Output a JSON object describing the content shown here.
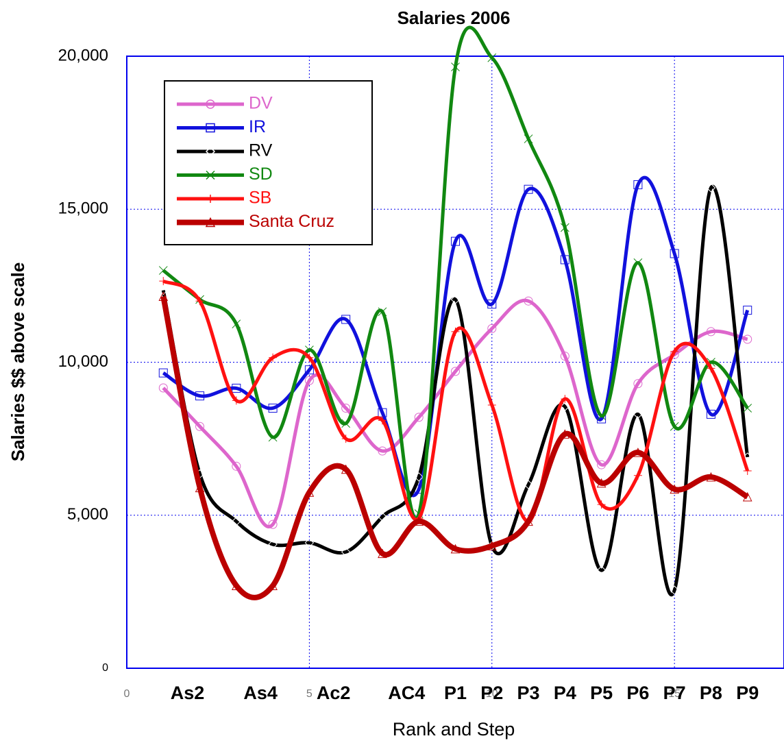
{
  "chart_data": {
    "type": "line",
    "title": "Salaries 2006",
    "x_label": "Rank and Step",
    "y_label": "Salaries  $$ above scale",
    "x": [
      1,
      2,
      3,
      4,
      5,
      6,
      7,
      8,
      9,
      10,
      11,
      12,
      13,
      14,
      15,
      16,
      17
    ],
    "x_category_labels": [
      {
        "value": 2,
        "label": "As2"
      },
      {
        "value": 4,
        "label": "As4"
      },
      {
        "value": 6,
        "label": "Ac2"
      },
      {
        "value": 8,
        "label": "AC4"
      },
      {
        "value": 9,
        "label": "P1"
      },
      {
        "value": 10,
        "label": "P2"
      },
      {
        "value": 11,
        "label": "P3"
      },
      {
        "value": 12,
        "label": "P4"
      },
      {
        "value": 13,
        "label": "P5"
      },
      {
        "value": 14,
        "label": "P6"
      },
      {
        "value": 15,
        "label": "P7"
      },
      {
        "value": 16,
        "label": "P8"
      },
      {
        "value": 17,
        "label": "P9"
      }
    ],
    "xlim": [
      0,
      18
    ],
    "xticks": [
      0,
      5,
      10,
      15
    ],
    "ylim": [
      0,
      20000
    ],
    "yticks": [
      0,
      {
        "value": 5000,
        "label": "5,000"
      },
      {
        "value": 10000,
        "label": "10,000"
      },
      {
        "value": 15000,
        "label": "15,000"
      },
      {
        "value": 20000,
        "label": "20,000"
      }
    ],
    "grid": true,
    "legend": "upper left",
    "series": [
      {
        "name": "DV",
        "color": "#dd66cc",
        "marker": "circle",
        "values": [
          9160,
          7900,
          6600,
          4700,
          9400,
          8500,
          7100,
          8200,
          9700,
          11100,
          12000,
          10200,
          6650,
          9300,
          10250,
          11000,
          10750
        ]
      },
      {
        "name": "IR",
        "color": "#1111dd",
        "marker": "square",
        "values": [
          9650,
          8900,
          9150,
          8500,
          9750,
          11400,
          8350,
          5850,
          13950,
          11900,
          15650,
          13350,
          8150,
          15800,
          13550,
          8300,
          11700
        ]
      },
      {
        "name": "RV",
        "color": "#000000",
        "marker": "diamond",
        "values": [
          12350,
          6350,
          4800,
          4050,
          4100,
          3800,
          4950,
          6250,
          12050,
          4000,
          6000,
          8550,
          3200,
          8300,
          2550,
          15700,
          6900
        ]
      },
      {
        "name": "SD",
        "color": "#118811",
        "marker": "x",
        "values": [
          13000,
          12050,
          11250,
          7550,
          10400,
          8000,
          11650,
          5050,
          19650,
          19950,
          17300,
          14400,
          8250,
          13250,
          7900,
          10000,
          8500
        ]
      },
      {
        "name": "SB",
        "color": "#ff1111",
        "marker": "plus",
        "values": [
          12650,
          12000,
          8750,
          10150,
          10150,
          7500,
          8100,
          4900,
          11000,
          8600,
          4800,
          8800,
          5350,
          6300,
          10350,
          9800,
          6450
        ]
      },
      {
        "name": "Santa Cruz",
        "color": "#bb0000",
        "marker": "triangle",
        "values": [
          12150,
          5900,
          2700,
          2700,
          5750,
          6500,
          3750,
          4800,
          3900,
          4000,
          4800,
          7650,
          6050,
          7050,
          5850,
          6250,
          5600
        ]
      }
    ]
  }
}
